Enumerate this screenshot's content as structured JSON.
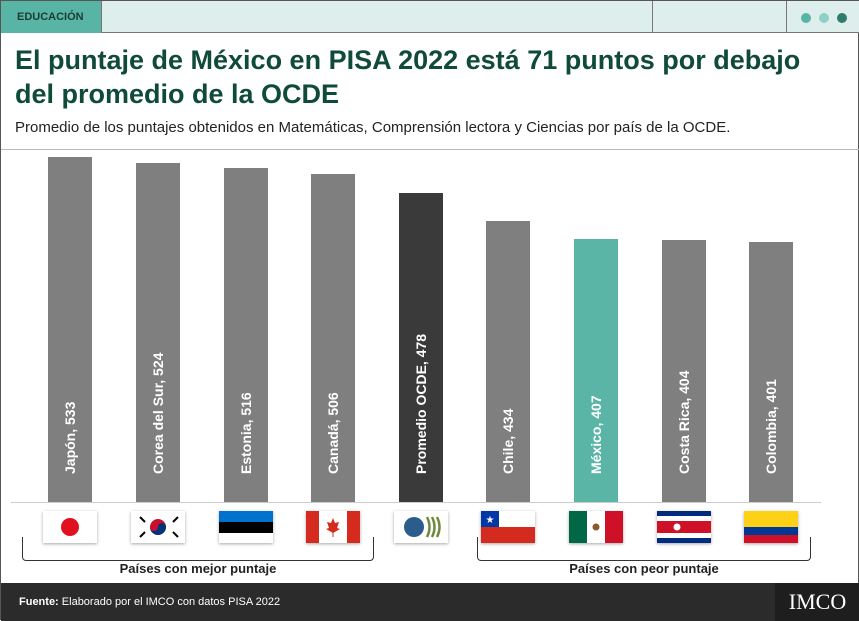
{
  "header": {
    "tag": "EDUCACIÓN",
    "title": "El puntaje de México en PISA 2022 está 71 puntos por debajo del promedio de la OCDE",
    "subtitle": "Promedio de los puntajes obtenidos en Matemáticas, Comprensión lectora y Ciencias por país de la OCDE.",
    "dots": [
      "#58b4a4",
      "#8fd0c6",
      "#2e7d6c"
    ]
  },
  "chart_data": {
    "type": "bar",
    "categories": [
      "Japón",
      "Corea del Sur",
      "Estonia",
      "Canadá",
      "Promedio OCDE",
      "Chile",
      "México",
      "Costa Rica",
      "Colombia"
    ],
    "values": [
      533,
      524,
      516,
      506,
      478,
      434,
      407,
      404,
      401
    ],
    "labels": [
      "Japón, 533",
      "Corea del Sur, 524",
      "Estonia, 516",
      "Canadá, 506",
      "Promedio OCDE, 478",
      "Chile, 434",
      "México, 407",
      "Costa Rica, 404",
      "Colombia, 401"
    ],
    "colors": [
      "#7f7f7f",
      "#7f7f7f",
      "#7f7f7f",
      "#7f7f7f",
      "#3a3a3a",
      "#7f7f7f",
      "#5bb5a6",
      "#7f7f7f",
      "#7f7f7f"
    ],
    "flags": [
      "japan-flag",
      "south-korea-flag",
      "estonia-flag",
      "canada-flag",
      "oecd-logo",
      "chile-flag",
      "mexico-flag",
      "costa-rica-flag",
      "colombia-flag"
    ],
    "groups": [
      "Países con mejor puntaje",
      "Países con peor puntaje"
    ],
    "ylim": [
      0,
      533
    ]
  },
  "footer": {
    "source_label": "Fuente:",
    "source_text": " Elaborado por el IMCO con datos PISA 2022",
    "logo": "IMCO"
  }
}
